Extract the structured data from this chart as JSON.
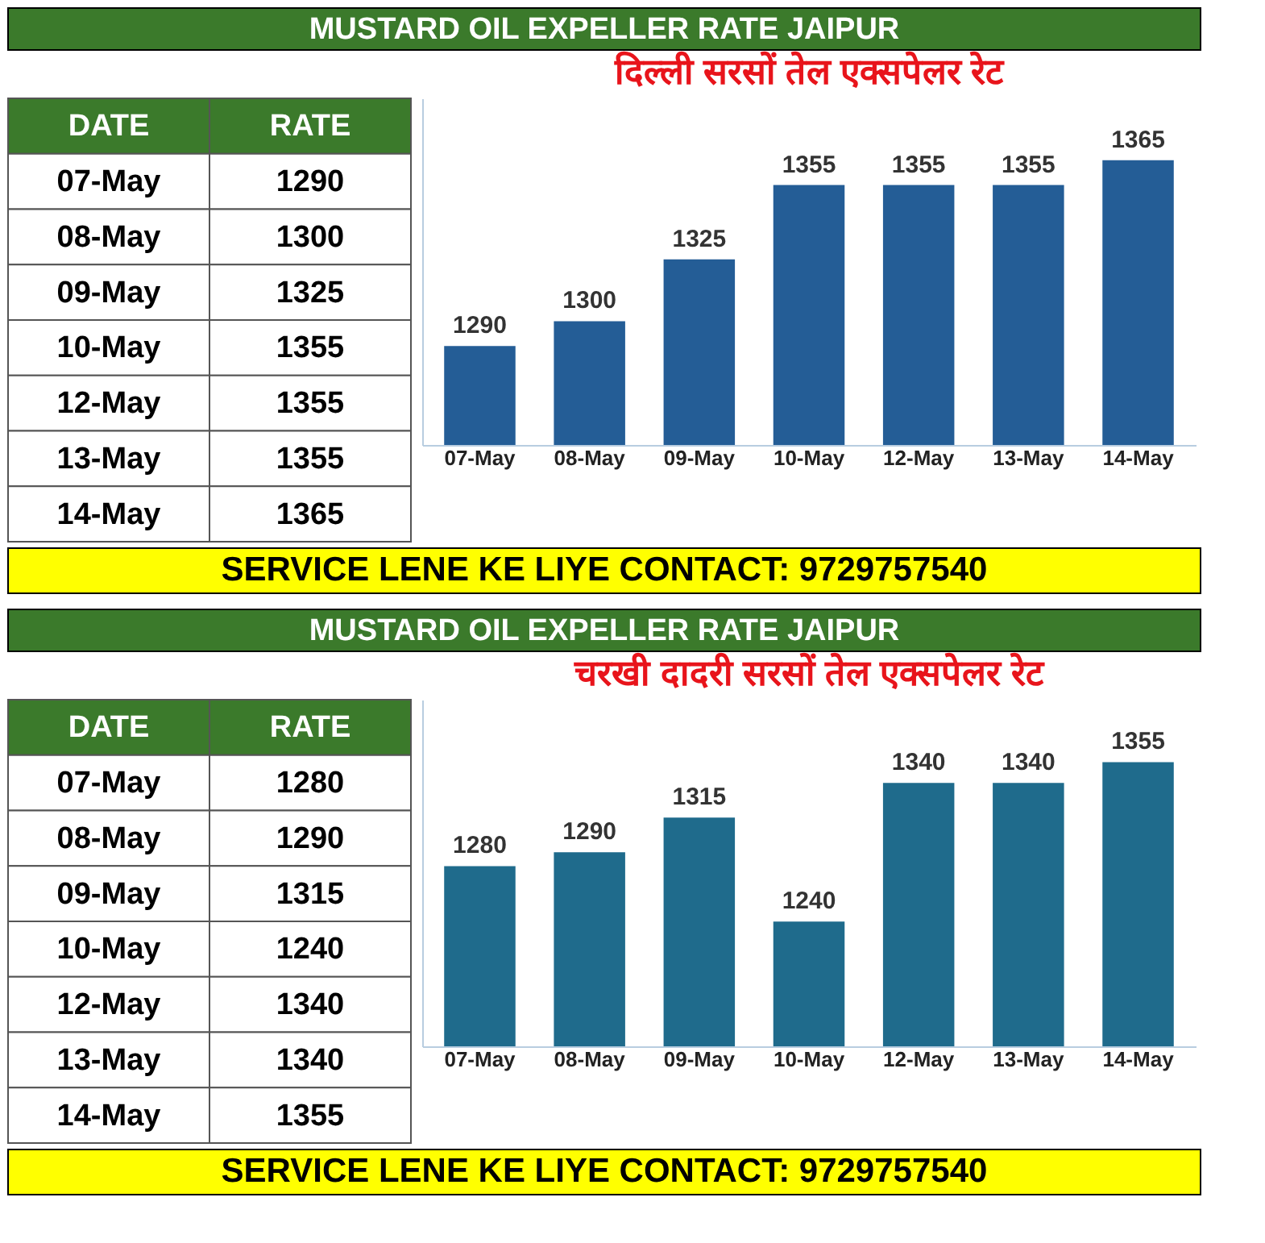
{
  "chart_data": [
    {
      "type": "other",
      "xlabel": "DATE",
      "ylabel": "RATE",
      "categories": [
        "07-May",
        "08-May",
        "09-May",
        "10-May",
        "12-May",
        "13-May",
        "14-May"
      ],
      "values": [
        1290,
        1300,
        1325,
        1355,
        1355,
        1355,
        1365
      ],
      "data_labels": true
    },
    {
      "type": "bar",
      "title": "दिल्ली सरसों तेल एक्सपेलर रेट",
      "subtitle": "MUSTARD OIL EXPELLER RATE JAIPUR",
      "annotations": [
        "SERVICE LENE KE LIYE CONTACT: 9729757540"
      ],
      "categories": [
        "07-May",
        "08-May",
        "09-May",
        "10-May",
        "12-May",
        "13-May",
        "14-May"
      ],
      "values": [
        1290,
        1300,
        1325,
        1355,
        1355,
        1355,
        1365
      ],
      "color": "#245d96",
      "ylim": [
        1250,
        1390
      ],
      "data_labels": true,
      "tick_labels": "x"
    },
    {
      "type": "other",
      "xlabel": "DATE",
      "ylabel": "RATE",
      "categories": [
        "07-May",
        "08-May",
        "09-May",
        "10-May",
        "12-May",
        "13-May",
        "14-May"
      ],
      "values": [
        1280,
        1290,
        1315,
        1240,
        1340,
        1340,
        1355
      ],
      "data_labels": true
    },
    {
      "type": "bar",
      "title": "चरखी दादरी सरसों तेल एक्सपेलर रेट",
      "subtitle": "MUSTARD OIL EXPELLER RATE JAIPUR",
      "annotations": [
        "SERVICE LENE KE LIYE CONTACT: 9729757540"
      ],
      "categories": [
        "07-May",
        "08-May",
        "09-May",
        "10-May",
        "12-May",
        "13-May",
        "14-May"
      ],
      "values": [
        1280,
        1290,
        1315,
        1240,
        1340,
        1340,
        1355
      ],
      "color": "#1f6b8c",
      "ylim": [
        1150,
        1400
      ],
      "data_labels": true,
      "tick_labels": "x"
    }
  ]
}
